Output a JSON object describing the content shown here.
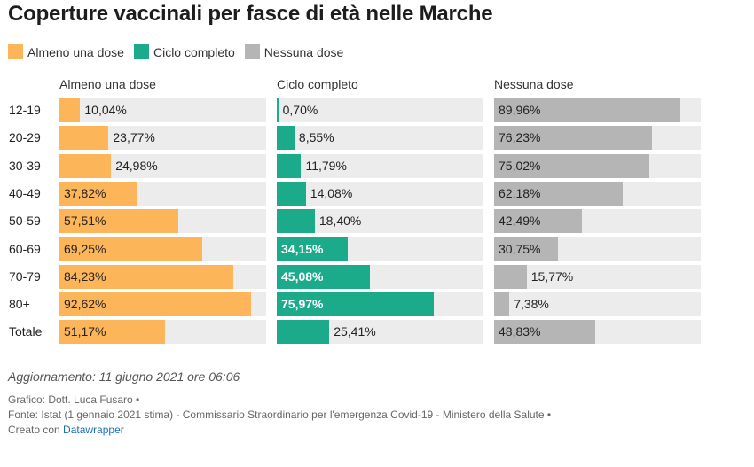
{
  "title": "Coperture vaccinali per fasce di età nelle Marche",
  "legend": [
    {
      "label": "Almeno una dose",
      "color": "#fdb55a"
    },
    {
      "label": "Ciclo completo",
      "color": "#1bab8a"
    },
    {
      "label": "Nessuna dose",
      "color": "#b5b5b5"
    }
  ],
  "chart_data": {
    "type": "bar",
    "categories": [
      "12-19",
      "20-29",
      "30-39",
      "40-49",
      "50-59",
      "60-69",
      "70-79",
      "80+",
      "Totale"
    ],
    "series": [
      {
        "name": "Almeno una dose",
        "color": "#fdb55a",
        "values": [
          10.04,
          23.77,
          24.98,
          37.82,
          57.51,
          69.25,
          84.23,
          92.62,
          51.17
        ],
        "labels": [
          "10,04%",
          "23,77%",
          "24,98%",
          "37,82%",
          "57,51%",
          "69,25%",
          "84,23%",
          "92,62%",
          "51,17%"
        ]
      },
      {
        "name": "Ciclo completo",
        "color": "#1bab8a",
        "values": [
          0.7,
          8.55,
          11.79,
          14.08,
          18.4,
          34.15,
          45.08,
          75.97,
          25.41
        ],
        "labels": [
          "0,70%",
          "8,55%",
          "11,79%",
          "14,08%",
          "18,40%",
          "34,15%",
          "45,08%",
          "75,97%",
          "25,41%"
        ]
      },
      {
        "name": "Nessuna dose",
        "color": "#b5b5b5",
        "values": [
          89.96,
          76.23,
          75.02,
          62.18,
          42.49,
          30.75,
          15.77,
          7.38,
          48.83
        ],
        "labels": [
          "89,96%",
          "76,23%",
          "75,02%",
          "62,18%",
          "42,49%",
          "30,75%",
          "15,77%",
          "7,38%",
          "48,83%"
        ]
      }
    ],
    "xlim": [
      0,
      100
    ],
    "grid": false,
    "legend_position": "top-left"
  },
  "footer": {
    "update": "Aggiornamento: 11 giugno 2021 ore 06:06",
    "credit": "Grafico: Dott. Luca Fusaro •",
    "source": "Fonte: Istat (1 gennaio 2021 stima) - Commissario Straordinario per l'emergenza Covid-19 - Ministero della Salute •",
    "created_prefix": "Creato con",
    "created_link": "Datawrapper"
  }
}
